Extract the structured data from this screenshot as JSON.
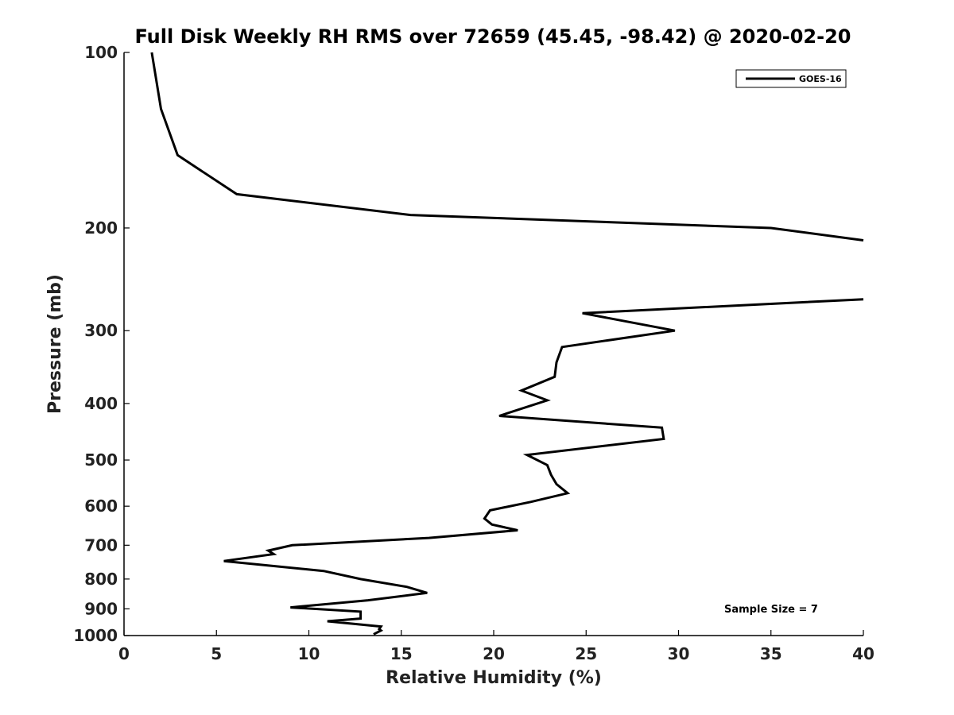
{
  "chart_data": {
    "type": "line",
    "title": "Full Disk Weekly RH RMS over 72659 (45.45, -98.42) @ 2020-02-20",
    "xlabel": "Relative Humidity (%)",
    "ylabel": "Pressure (mb)",
    "xlim": [
      0,
      40
    ],
    "ylim": [
      100,
      1000
    ],
    "y_scale": "log",
    "y_reversed": true,
    "grid": false,
    "legend_placement": "top-right",
    "x_ticks": [
      "0",
      "5",
      "10",
      "15",
      "20",
      "25",
      "30",
      "35",
      "40"
    ],
    "y_ticks": [
      "100",
      "200",
      "300",
      "400",
      "500",
      "600",
      "700",
      "800",
      "900",
      "1000"
    ],
    "series": [
      {
        "name": "GOES-16",
        "color": "#000000",
        "x": [
          1.5,
          2.0,
          2.9,
          6.1,
          15.5,
          35.0,
          40.0
        ],
        "y": [
          100,
          125,
          150,
          175,
          190,
          200,
          210
        ]
      },
      {
        "name": "GOES-16",
        "color": "#000000",
        "x": [
          40.0,
          24.8,
          29.8,
          23.7,
          23.4,
          23.3,
          21.5,
          22.9,
          20.3,
          29.1,
          29.2,
          21.8,
          22.9,
          23.1,
          23.4,
          24.0,
          22.0,
          19.8,
          19.5,
          19.9,
          21.3,
          16.5,
          9.1,
          7.8,
          8.1,
          5.4,
          10.8,
          12.8,
          15.3,
          16.4,
          13.2,
          9.0,
          12.8,
          12.8,
          11.0,
          13.9,
          13.8,
          13.9,
          13.5
        ],
        "y": [
          265,
          280,
          300,
          320,
          340,
          360,
          380,
          395,
          420,
          440,
          460,
          490,
          510,
          530,
          550,
          570,
          590,
          610,
          630,
          645,
          660,
          680,
          700,
          715,
          725,
          745,
          775,
          800,
          825,
          845,
          870,
          895,
          910,
          935,
          945,
          965,
          975,
          980,
          995
        ]
      }
    ],
    "annotation": "Sample Size = 7"
  }
}
